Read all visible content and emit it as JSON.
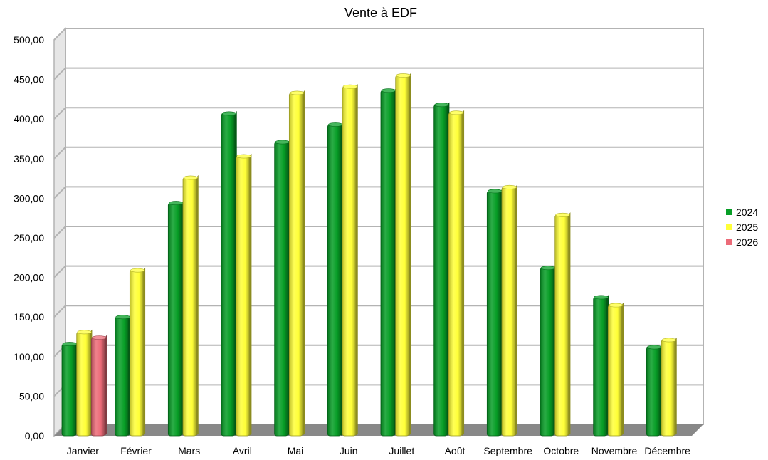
{
  "chart_data": {
    "type": "bar",
    "title": "Vente à EDF",
    "categories": [
      "Janvier",
      "Février",
      "Mars",
      "Avril",
      "Mai",
      "Juin",
      "Juillet",
      "Août",
      "Septembre",
      "Octobre",
      "Novembre",
      "Décembre"
    ],
    "series": [
      {
        "name": "2024",
        "color": "#079e26",
        "values": [
          116,
          150,
          294,
          407,
          371,
          393,
          436,
          418,
          309,
          212,
          175,
          112
        ]
      },
      {
        "name": "2025",
        "color": "#ffff38",
        "values": [
          131,
          209,
          326,
          353,
          433,
          441,
          455,
          408,
          314,
          279,
          165,
          121
        ]
      },
      {
        "name": "2026",
        "color": "#ec6b78",
        "values": [
          124,
          null,
          null,
          null,
          null,
          null,
          null,
          null,
          null,
          null,
          null,
          null
        ]
      }
    ],
    "ylim": [
      0,
      500
    ],
    "yticks": [
      "0,00",
      "50,00",
      "100,00",
      "150,00",
      "200,00",
      "250,00",
      "300,00",
      "350,00",
      "400,00",
      "450,00",
      "500,00"
    ],
    "ytick_values": [
      0,
      50,
      100,
      150,
      200,
      250,
      300,
      350,
      400,
      450,
      500
    ],
    "grid": true,
    "legend_position": "right",
    "style": "3d-cylinder"
  }
}
